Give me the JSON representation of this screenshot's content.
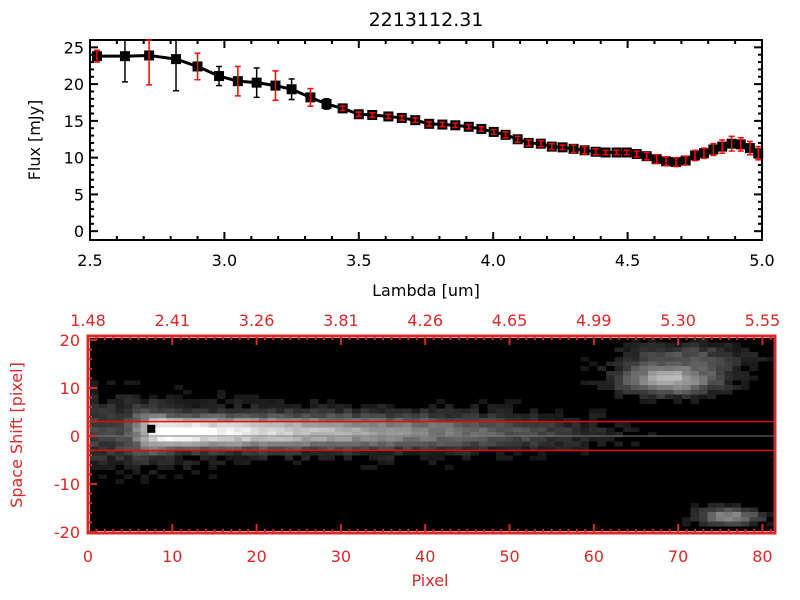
{
  "chart_data": [
    {
      "type": "scatter",
      "title": "2213112.31",
      "xlabel": "Lambda [um]",
      "ylabel": "Flux [mJy]",
      "xlim": [
        2.5,
        5.0
      ],
      "ylim": [
        -1.2,
        26
      ],
      "xticks": [
        "2.5",
        "3.0",
        "3.5",
        "4.0",
        "4.5",
        "5.0"
      ],
      "xtick_values": [
        2.5,
        3.0,
        3.5,
        4.0,
        4.5,
        5.0
      ],
      "yticks": [
        "0",
        "5",
        "10",
        "15",
        "20",
        "25"
      ],
      "ytick_values": [
        0,
        5,
        10,
        15,
        20,
        25
      ],
      "grid": false,
      "series": [
        {
          "name": "flux",
          "x": [
            2.526,
            2.63,
            2.72,
            2.82,
            2.9,
            2.98,
            3.05,
            3.12,
            3.19,
            3.25,
            3.32,
            3.38,
            3.44,
            3.5,
            3.55,
            3.61,
            3.66,
            3.71,
            3.762,
            3.811,
            3.859,
            3.909,
            3.956,
            4.002,
            4.046,
            4.091,
            4.132,
            4.177,
            4.218,
            4.258,
            4.299,
            4.34,
            4.381,
            4.418,
            4.459,
            4.497,
            4.534,
            4.571,
            4.608,
            4.643,
            4.68,
            4.716,
            4.751,
            4.784,
            4.819,
            4.852,
            4.887,
            4.921,
            4.955,
            4.986
          ],
          "y": [
            23.8,
            23.8,
            23.9,
            23.4,
            22.4,
            21.1,
            20.4,
            20.2,
            19.8,
            19.3,
            18.2,
            17.3,
            16.7,
            15.9,
            15.8,
            15.6,
            15.4,
            15.1,
            14.6,
            14.5,
            14.4,
            14.2,
            13.9,
            13.5,
            13.1,
            12.5,
            12.0,
            11.9,
            11.5,
            11.4,
            11.2,
            11.0,
            10.8,
            10.7,
            10.7,
            10.7,
            10.5,
            10.2,
            9.8,
            9.5,
            9.4,
            9.6,
            10.3,
            10.6,
            11.1,
            11.5,
            11.9,
            11.8,
            11.3,
            10.6
          ],
          "yerr": [
            0.8,
            3.5,
            4.0,
            4.3,
            1.8,
            1.3,
            2.0,
            2.0,
            2.0,
            1.4,
            1.2,
            0.7,
            0.3,
            0.3,
            0.3,
            0.3,
            0.3,
            0.3,
            0.3,
            0.3,
            0.3,
            0.3,
            0.3,
            0.3,
            0.4,
            0.4,
            0.4,
            0.4,
            0.4,
            0.3,
            0.5,
            0.5,
            0.4,
            0.3,
            0.3,
            0.3,
            0.4,
            0.5,
            0.6,
            0.6,
            0.6,
            0.6,
            0.7,
            0.7,
            0.8,
            0.9,
            1.0,
            0.9,
            0.9,
            0.9
          ],
          "marker_color": "#000000",
          "errorbar_color": "#ff0000"
        }
      ]
    },
    {
      "type": "heatmap",
      "xlabel": "Pixel",
      "ylabel": "Space Shift [pixel]",
      "xlim": [
        0,
        81
      ],
      "ylim": [
        -20.2,
        20.8
      ],
      "xticks": [
        "0",
        "10",
        "20",
        "30",
        "40",
        "50",
        "60",
        "70",
        "80"
      ],
      "xtick_values": [
        0,
        10,
        20,
        30,
        40,
        50,
        60,
        70,
        80
      ],
      "yticks": [
        "20",
        "10",
        "0",
        "-10",
        "-20"
      ],
      "ytick_values": [
        20,
        10,
        0,
        -10,
        -20
      ],
      "top_axis_label_values": [
        "1.48",
        "2.41",
        "3.26",
        "3.81",
        "4.26",
        "4.65",
        "4.99",
        "5.30",
        "5.55"
      ],
      "aperture_lines": [
        3,
        -3
      ],
      "center_line": 0,
      "marker": {
        "x": 7.5,
        "y": 1.5
      },
      "axis_color": "#d42a2a",
      "aperture_color": "#ff0000"
    }
  ]
}
